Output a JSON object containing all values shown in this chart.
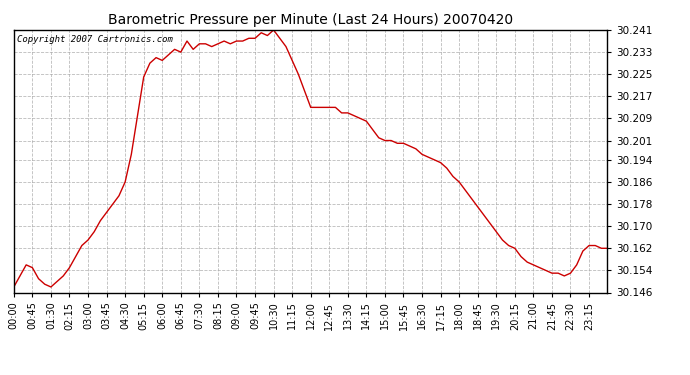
{
  "title": "Barometric Pressure per Minute (Last 24 Hours) 20070420",
  "copyright_text": "Copyright 2007 Cartronics.com",
  "line_color": "#cc0000",
  "background_color": "#ffffff",
  "plot_bg_color": "#ffffff",
  "grid_color": "#aaaaaa",
  "ylim": [
    30.146,
    30.241
  ],
  "yticks": [
    30.146,
    30.154,
    30.162,
    30.17,
    30.178,
    30.186,
    30.194,
    30.201,
    30.209,
    30.217,
    30.225,
    30.233,
    30.241
  ],
  "xtick_labels": [
    "00:00",
    "00:45",
    "01:30",
    "02:15",
    "03:00",
    "03:45",
    "04:30",
    "05:15",
    "06:00",
    "06:45",
    "07:30",
    "08:15",
    "09:00",
    "09:45",
    "10:30",
    "11:15",
    "12:00",
    "12:45",
    "13:30",
    "14:15",
    "15:00",
    "15:45",
    "16:30",
    "17:15",
    "18:00",
    "18:45",
    "19:30",
    "20:15",
    "21:00",
    "21:45",
    "22:30",
    "23:15"
  ],
  "key_minutes": [
    0,
    15,
    30,
    45,
    60,
    75,
    90,
    105,
    120,
    135,
    150,
    165,
    180,
    195,
    210,
    225,
    240,
    255,
    270,
    285,
    300,
    315,
    330,
    345,
    360,
    375,
    390,
    405,
    420,
    435,
    450,
    465,
    480,
    495,
    510,
    525,
    540,
    555,
    570,
    585,
    600,
    615,
    630,
    645,
    660,
    675,
    690,
    705,
    720,
    735,
    750,
    765,
    780,
    795,
    810,
    825,
    840,
    855,
    870,
    885,
    900,
    915,
    930,
    945,
    960,
    975,
    990,
    1005,
    1020,
    1035,
    1050,
    1065,
    1080,
    1095,
    1110,
    1125,
    1140,
    1155,
    1170,
    1185,
    1200,
    1215,
    1230,
    1245,
    1260,
    1275,
    1290,
    1305,
    1320,
    1335,
    1350,
    1365,
    1380,
    1395,
    1410,
    1425,
    1439
  ],
  "key_values": [
    30.148,
    30.152,
    30.156,
    30.155,
    30.151,
    30.149,
    30.148,
    30.15,
    30.152,
    30.155,
    30.159,
    30.163,
    30.165,
    30.168,
    30.172,
    30.175,
    30.178,
    30.181,
    30.186,
    30.196,
    30.21,
    30.224,
    30.229,
    30.231,
    30.23,
    30.232,
    30.234,
    30.233,
    30.237,
    30.234,
    30.236,
    30.236,
    30.235,
    30.236,
    30.237,
    30.236,
    30.237,
    30.237,
    30.238,
    30.238,
    30.24,
    30.239,
    30.241,
    30.238,
    30.235,
    30.23,
    30.225,
    30.219,
    30.213,
    30.213,
    30.213,
    30.213,
    30.213,
    30.211,
    30.211,
    30.21,
    30.209,
    30.208,
    30.205,
    30.202,
    30.201,
    30.201,
    30.2,
    30.2,
    30.199,
    30.198,
    30.196,
    30.195,
    30.194,
    30.193,
    30.191,
    30.188,
    30.186,
    30.183,
    30.18,
    30.177,
    30.174,
    30.171,
    30.168,
    30.165,
    30.163,
    30.162,
    30.159,
    30.157,
    30.156,
    30.155,
    30.154,
    30.153,
    30.153,
    30.152,
    30.153,
    30.156,
    30.161,
    30.163,
    30.163,
    30.162,
    30.162
  ]
}
